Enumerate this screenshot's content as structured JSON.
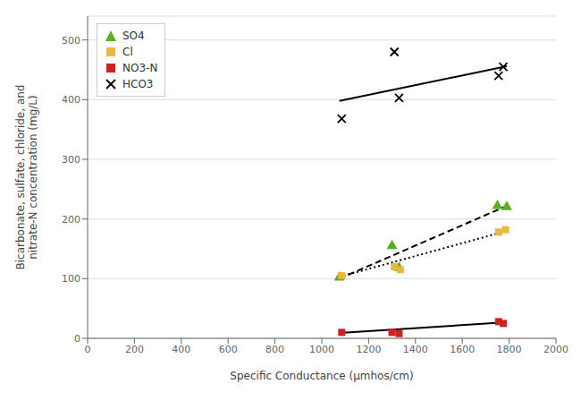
{
  "chart_data": {
    "type": "scatter",
    "title": "",
    "xlabel": "Specific Conductance (μmhos/cm)",
    "ylabel": "Bicarbonate, sulfate, chloride, and\nnitrate-N concentration (mg/L)",
    "xlim": [
      0,
      2000
    ],
    "ylim": [
      0,
      540
    ],
    "xticks": [
      0,
      200,
      400,
      600,
      800,
      1000,
      1200,
      1400,
      1600,
      1800,
      2000
    ],
    "yticks": [
      0,
      100,
      200,
      300,
      400,
      500
    ],
    "grid": true,
    "legend": "upper left",
    "series": [
      {
        "name": "SO4",
        "color": "#5ab025",
        "marker": "triangle",
        "x": [
          1075,
          1300,
          1330,
          1750,
          1790
        ],
        "values": [
          102,
          155,
          118,
          222,
          220
        ],
        "trend": {
          "color": "#000000",
          "line_style": "dashed",
          "x": [
            1075,
            1790
          ],
          "values": [
            100,
            222
          ]
        }
      },
      {
        "name": "Cl",
        "color": "#e8b840",
        "marker": "square",
        "x": [
          1085,
          1310,
          1335,
          1755,
          1785
        ],
        "values": [
          105,
          120,
          115,
          178,
          182
        ],
        "trend": {
          "color": "#000000",
          "line_style": "dotted",
          "x": [
            1075,
            1790
          ],
          "values": [
            103,
            180
          ]
        }
      },
      {
        "name": "NO3-N",
        "color": "#cc2222",
        "marker": "square",
        "x": [
          1085,
          1300,
          1330,
          1755,
          1775
        ],
        "values": [
          10,
          10,
          8,
          28,
          25
        ],
        "trend": {
          "color": "#000000",
          "line_style": "solid",
          "x": [
            1075,
            1790
          ],
          "values": [
            9,
            27
          ]
        }
      },
      {
        "name": "HCO3",
        "color": "#000000",
        "marker": "x",
        "x": [
          1085,
          1310,
          1330,
          1755,
          1775
        ],
        "values": [
          368,
          480,
          403,
          440,
          455
        ],
        "trend": {
          "color": "#000000",
          "line_style": "solid",
          "x": [
            1075,
            1790
          ],
          "values": [
            398,
            456
          ]
        }
      }
    ]
  }
}
